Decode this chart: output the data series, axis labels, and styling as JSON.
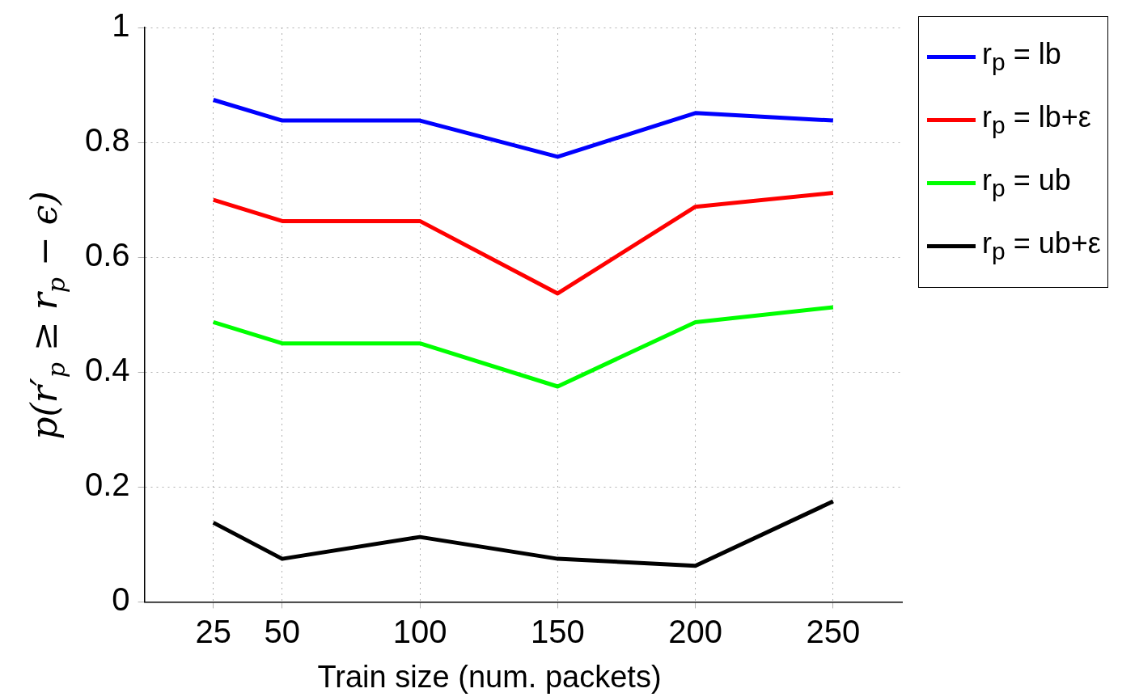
{
  "chart_data": {
    "type": "line",
    "xlabel": "Train size (num. packets)",
    "ylabel": "p(r′$_{p}$ ≥ r$_{p}$ − ϵ)",
    "x": [
      25,
      50,
      100,
      150,
      200,
      250
    ],
    "xlim": [
      0,
      275
    ],
    "xticks": [
      25,
      50,
      100,
      150,
      200,
      250
    ],
    "ylim": [
      0,
      1
    ],
    "yticks": [
      0,
      0.2,
      0.4,
      0.6,
      0.8,
      1
    ],
    "grid": true,
    "legend": "top right",
    "marker": "none",
    "line_style": "solid",
    "series": [
      {
        "name": "r$_{p}$ = lb",
        "color": "#0000ff",
        "values": [
          0.874,
          0.838,
          0.838,
          0.775,
          0.851,
          0.838
        ]
      },
      {
        "name": "r$_{p}$ = lb+ε",
        "color": "#ff0000",
        "values": [
          0.7,
          0.663,
          0.663,
          0.537,
          0.688,
          0.712
        ]
      },
      {
        "name": "r$_{p}$ = ub",
        "color": "#00ff00",
        "values": [
          0.487,
          0.45,
          0.45,
          0.375,
          0.487,
          0.513
        ]
      },
      {
        "name": "r$_{p}$ = ub+ε",
        "color": "#000000",
        "values": [
          0.138,
          0.075,
          0.113,
          0.075,
          0.063,
          0.175
        ]
      }
    ]
  }
}
